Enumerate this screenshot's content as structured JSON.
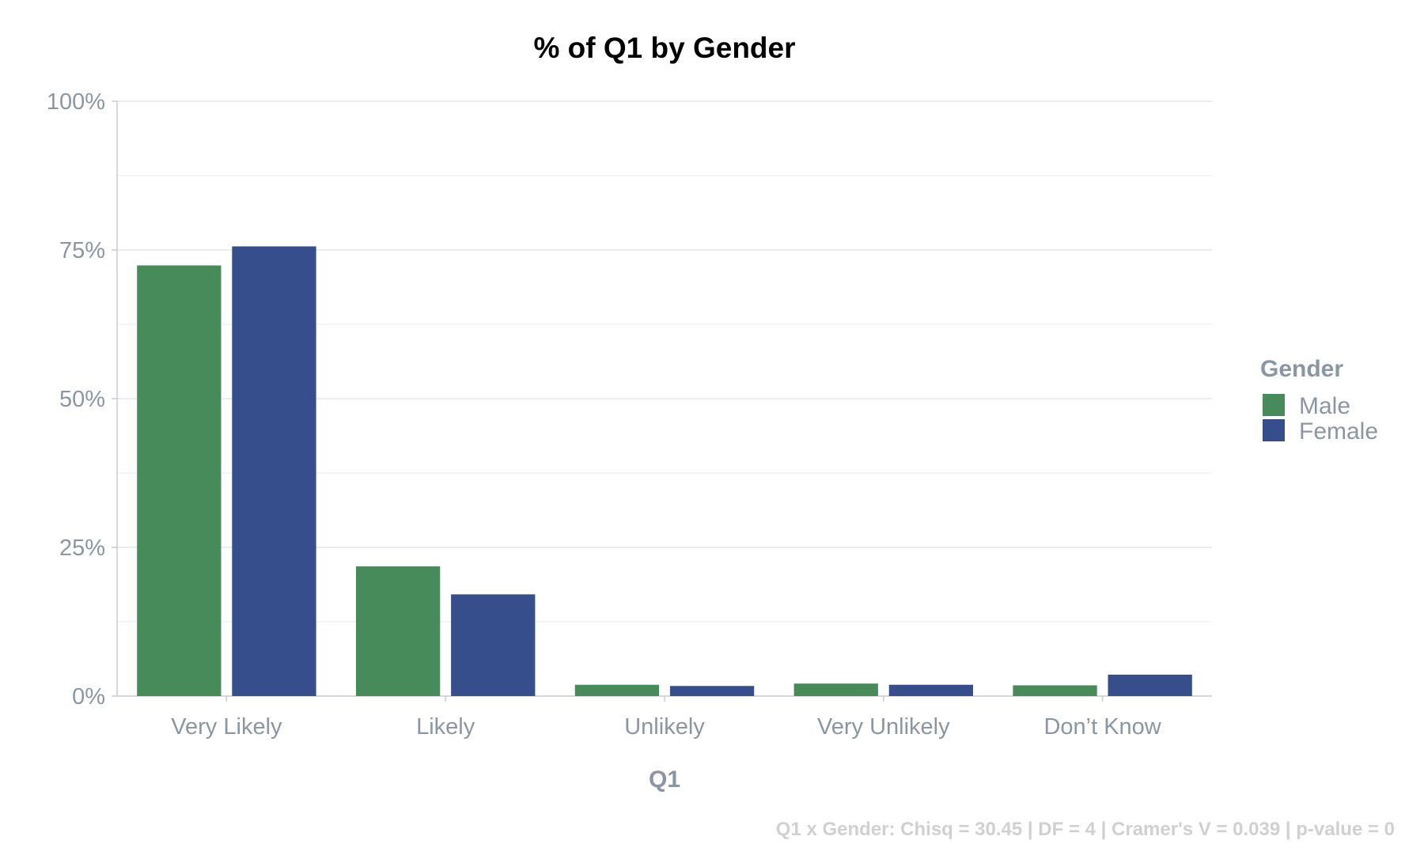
{
  "chart_data": {
    "type": "bar",
    "title": "% of Q1 by Gender",
    "xlabel": "Q1",
    "ylabel": "",
    "categories": [
      "Very Likely",
      "Likely",
      "Unlikely",
      "Very Unlikely",
      "Don’t Know"
    ],
    "series": [
      {
        "name": "Male",
        "values": [
          72.4,
          21.8,
          1.9,
          2.1,
          1.8
        ],
        "color": "#478b5a"
      },
      {
        "name": "Female",
        "values": [
          75.6,
          17.1,
          1.7,
          1.9,
          3.6
        ],
        "color": "#364e8c"
      }
    ],
    "ylim": [
      0,
      100
    ],
    "yticks": [
      "0%",
      "25%",
      "50%",
      "75%",
      "100%"
    ],
    "ytick_values": [
      0,
      25,
      50,
      75,
      100
    ],
    "grid": true,
    "legend": {
      "title": "Gender",
      "position": "right"
    },
    "caption": "Q1 x Gender: Chisq = 30.45 | DF = 4 | Cramer's V = 0.039 | p-value = 0"
  }
}
